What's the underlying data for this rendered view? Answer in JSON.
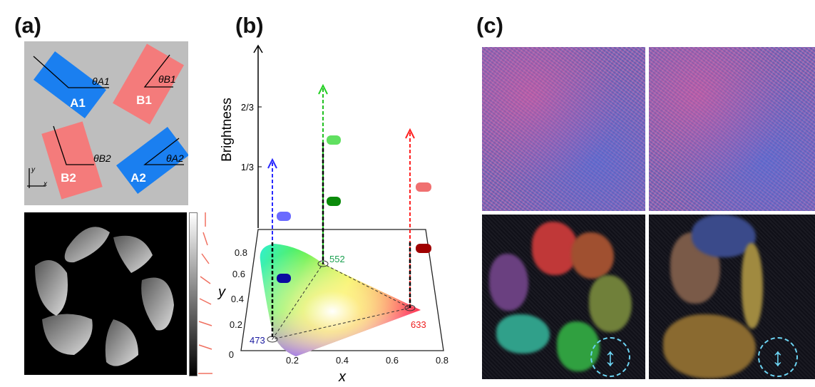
{
  "panels": {
    "a": "(a)",
    "b": "(b)",
    "c": "(c)"
  },
  "panel_a": {
    "regions": [
      {
        "label": "A1",
        "color": "#1a7ff0",
        "angle": "θA1"
      },
      {
        "label": "B1",
        "color": "#f47b7b",
        "angle": "θB1"
      },
      {
        "label": "B2",
        "color": "#f47b7b",
        "angle": "θB2"
      },
      {
        "label": "A2",
        "color": "#1a7ff0",
        "angle": "θA2"
      }
    ],
    "axes": {
      "x": "x",
      "y": "y"
    },
    "background": "#bebebe",
    "arrow_color": "#f07060"
  },
  "panel_b": {
    "z_label": "Brightness",
    "z_ticks": [
      "1/3",
      "2/3"
    ],
    "x_label": "x",
    "y_label": "y",
    "x_ticks": [
      "0.2",
      "0.4",
      "0.6",
      "0.8"
    ],
    "y_ticks": [
      "0",
      "0.2",
      "0.4",
      "0.6",
      "0.8"
    ],
    "primaries": [
      {
        "wavelength": "473",
        "color": "#1a1aa0",
        "x": 0.12,
        "y": 0.07
      },
      {
        "wavelength": "552",
        "color": "#1aa050",
        "x": 0.32,
        "y": 0.67
      },
      {
        "wavelength": "633",
        "color": "#ee2020",
        "x": 0.68,
        "y": 0.31
      }
    ]
  },
  "panel_c": {
    "icon": "double-arrow-vertical",
    "icon_color": "#6cd3f2"
  }
}
